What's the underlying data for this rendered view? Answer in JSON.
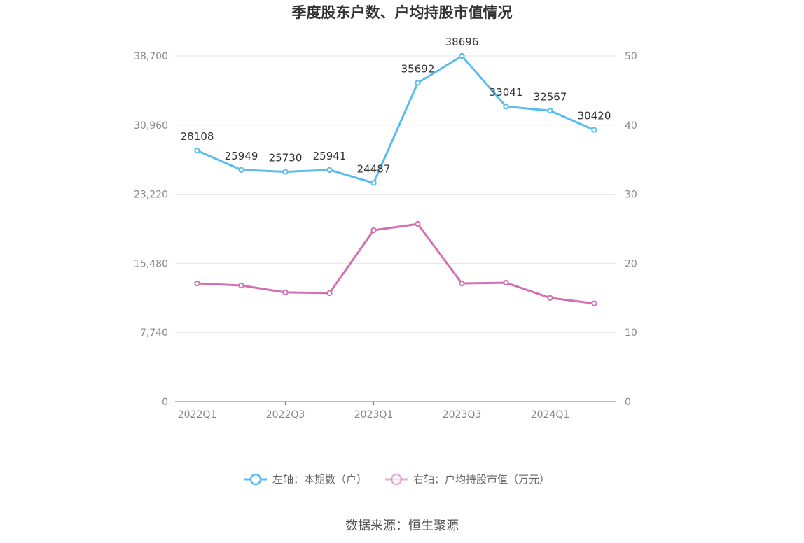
{
  "chart_data": {
    "type": "line",
    "title": "季度股东户数、户均持股市值情况",
    "categories": [
      "2022Q1",
      "2022Q2",
      "2022Q3",
      "2022Q4",
      "2023Q1",
      "2023Q2",
      "2023Q3",
      "2023Q4",
      "2024Q1",
      "2024Q2"
    ],
    "x_tick_labels": [
      "2022Q1",
      "2022Q3",
      "2023Q1",
      "2023Q3",
      "2024Q1"
    ],
    "left_axis": {
      "min": 0,
      "max": 38700,
      "ticks": [
        "0",
        "7,740",
        "15,480",
        "23,220",
        "30,960",
        "38,700"
      ]
    },
    "right_axis": {
      "min": 0,
      "max": 50,
      "ticks": [
        "0",
        "10",
        "20",
        "30",
        "40",
        "50"
      ]
    },
    "series": [
      {
        "name": "左轴：本期数（户）",
        "axis": "left",
        "color": "#5bbcef",
        "values": [
          28108,
          25949,
          25730,
          25941,
          24487,
          35692,
          38696,
          33041,
          32567,
          30420
        ],
        "labels": [
          "28108",
          "25949",
          "25730",
          "25941",
          "24487",
          "35692",
          "38696",
          "33041",
          "32567",
          "30420"
        ]
      },
      {
        "name": "右轴：户均持股市值（万元）",
        "axis": "right",
        "color": "#d36fb4",
        "values": [
          17.1,
          16.8,
          15.8,
          15.7,
          24.8,
          25.7,
          17.1,
          17.2,
          15.0,
          14.2
        ]
      }
    ],
    "grid": true,
    "legend_position": "bottom"
  },
  "source": "数据来源：恒生聚源"
}
